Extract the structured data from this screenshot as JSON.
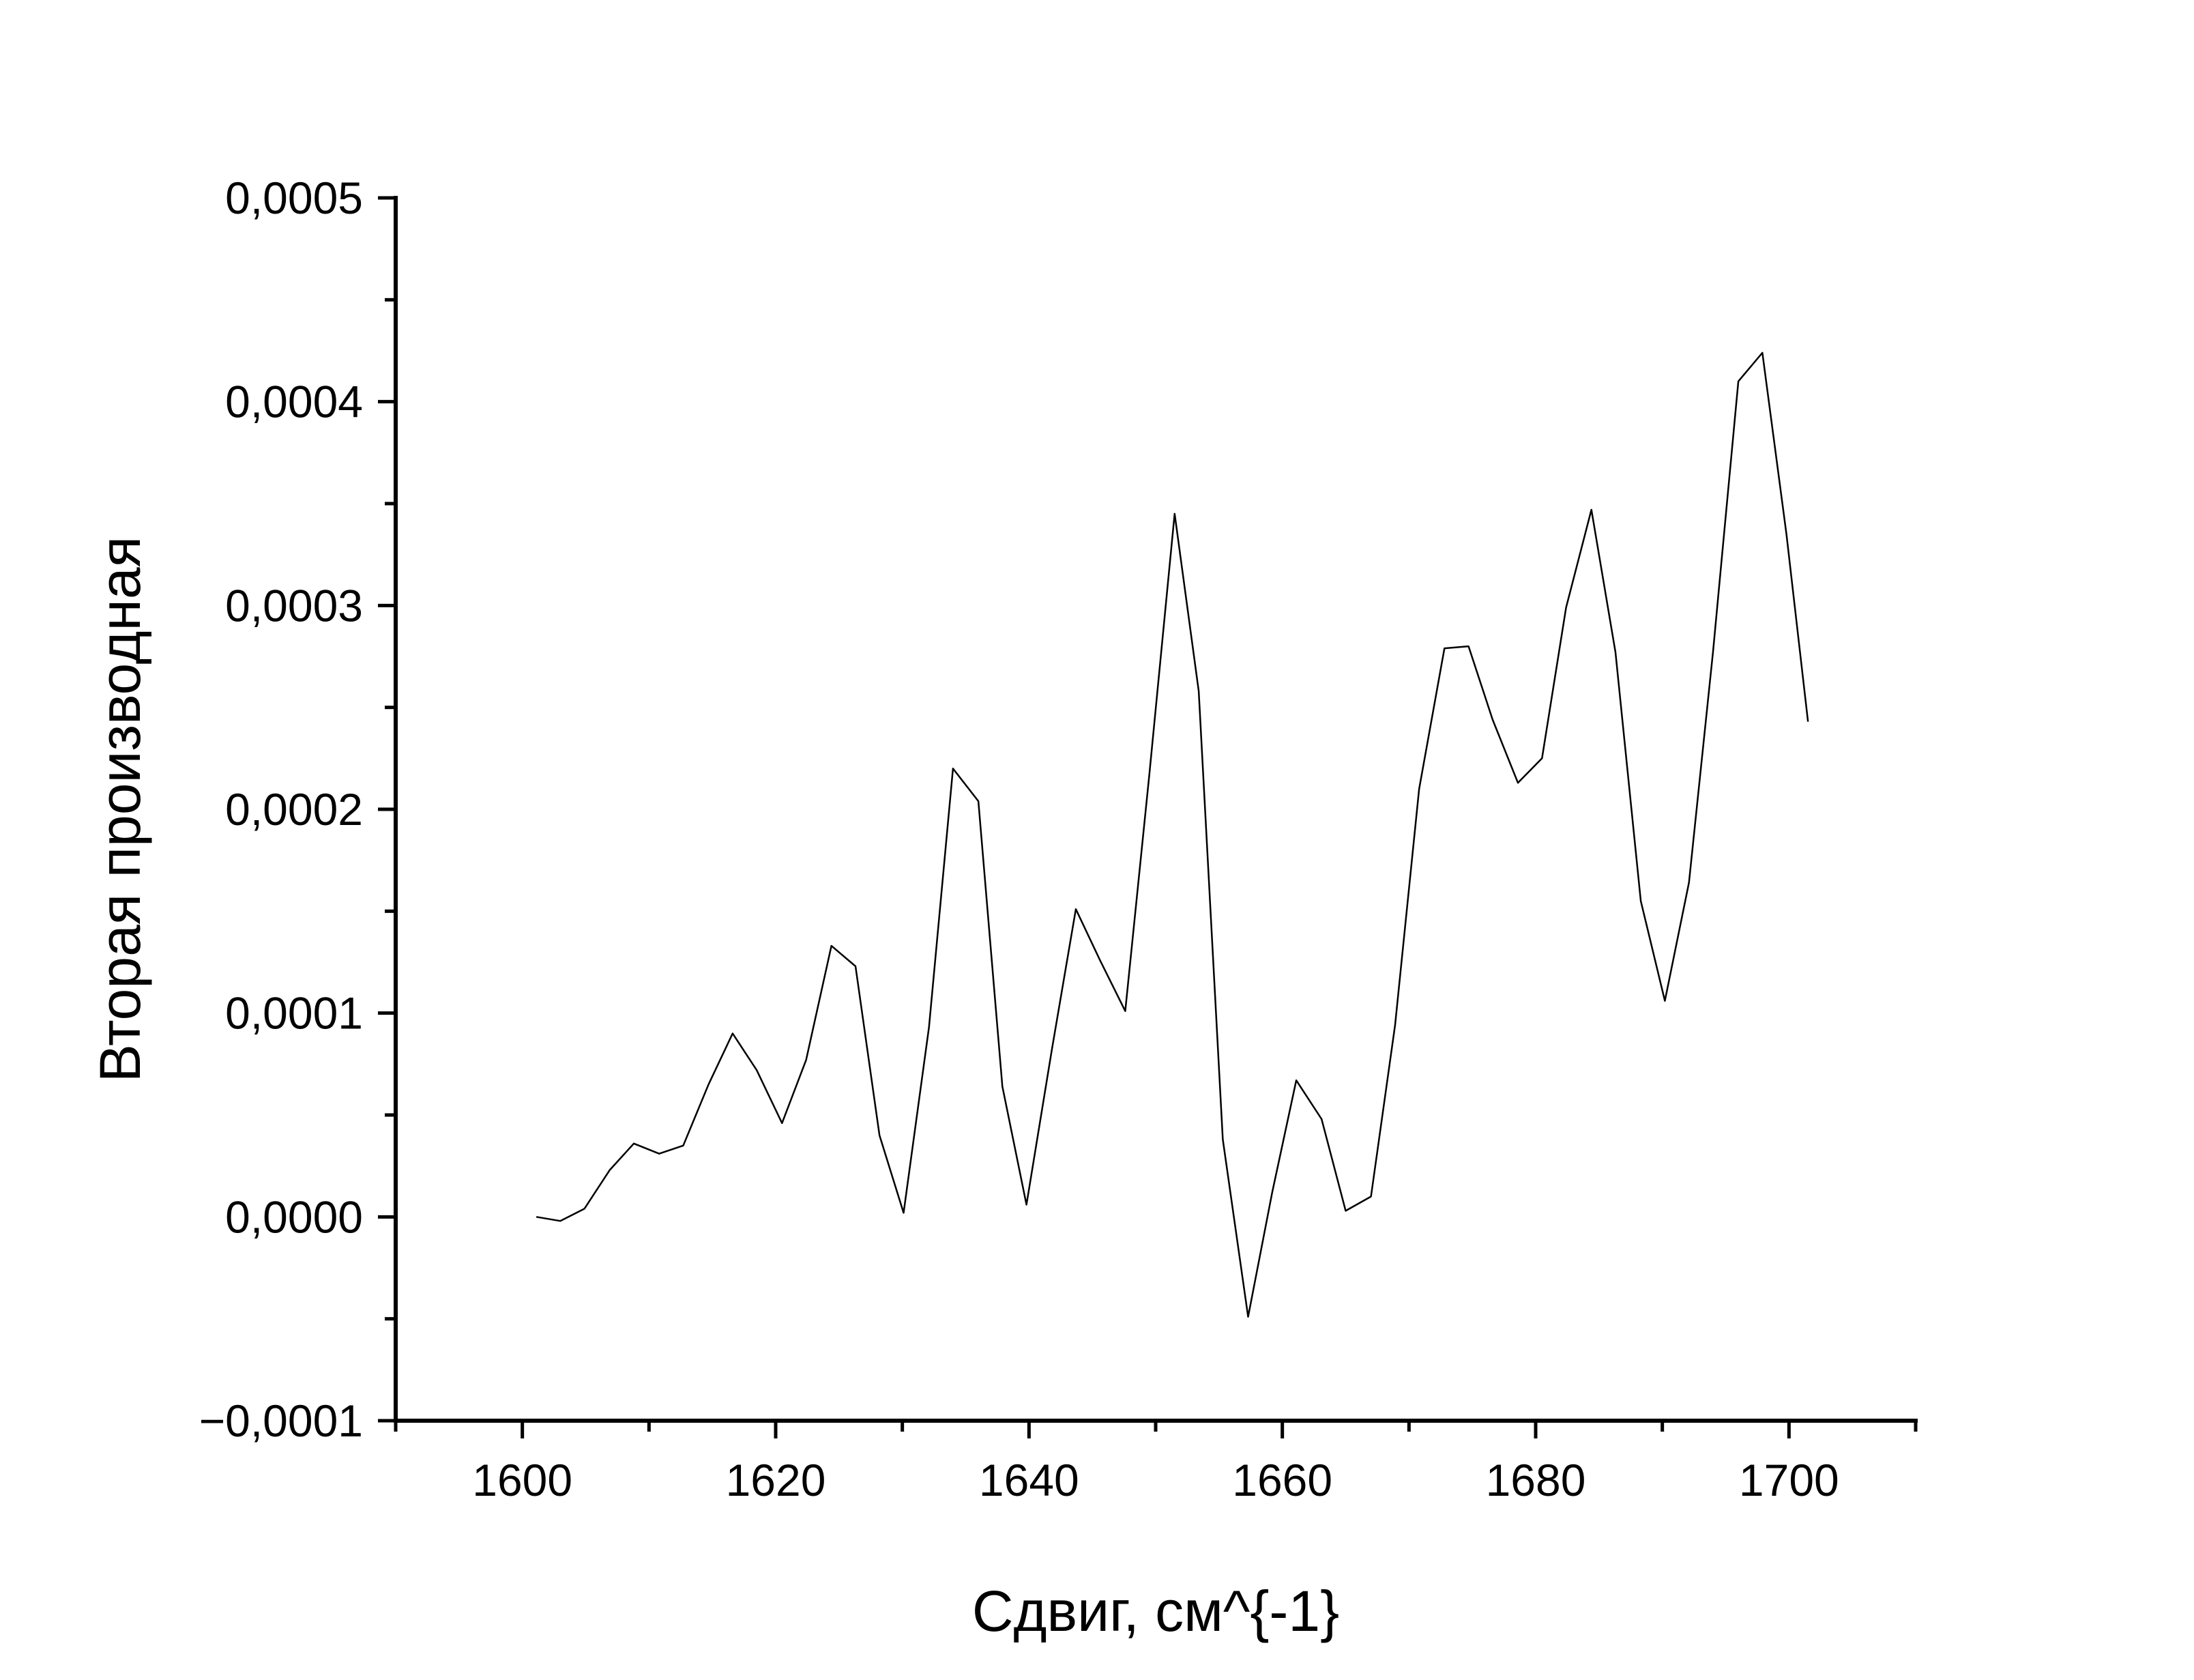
{
  "chart_data": {
    "type": "line",
    "title": "",
    "xlabel": "Сдвиг, см^{-1}",
    "ylabel": "Вторая производная",
    "xlim": [
      1590,
      1710
    ],
    "ylim": [
      -0.0001,
      0.0005
    ],
    "x_ticks": [
      {
        "value": 1600,
        "label": "1600"
      },
      {
        "value": 1620,
        "label": "1620"
      },
      {
        "value": 1640,
        "label": "1640"
      },
      {
        "value": 1660,
        "label": "1660"
      },
      {
        "value": 1680,
        "label": "1680"
      },
      {
        "value": 1700,
        "label": "1700"
      }
    ],
    "y_ticks": [
      {
        "value": -0.0001,
        "label": "−0,0001"
      },
      {
        "value": 0.0,
        "label": "0,0000"
      },
      {
        "value": 0.0001,
        "label": "0,0001"
      },
      {
        "value": 0.0002,
        "label": "0,0002"
      },
      {
        "value": 0.0003,
        "label": "0,0003"
      },
      {
        "value": 0.0004,
        "label": "0,0004"
      },
      {
        "value": 0.0005,
        "label": "0,0005"
      }
    ],
    "grid": false,
    "legend": "none",
    "line_color": "#000000",
    "series": [
      {
        "x": [
          1601.1,
          1603.0,
          1604.9,
          1606.9,
          1608.8,
          1610.8,
          1612.7,
          1614.7,
          1616.6,
          1618.5,
          1620.5,
          1622.4,
          1624.4,
          1626.3,
          1628.2,
          1630.1,
          1632.1,
          1634.0,
          1636.0,
          1637.9,
          1639.8,
          1641.8,
          1643.7,
          1645.6,
          1647.6,
          1649.5,
          1651.5,
          1653.4,
          1655.3,
          1657.3,
          1659.2,
          1661.1,
          1663.1,
          1665.0,
          1667.0,
          1668.9,
          1670.8,
          1672.8,
          1674.7,
          1676.6,
          1678.6,
          1680.5,
          1682.4,
          1684.4,
          1686.3,
          1688.3,
          1690.2,
          1692.1,
          1694.0,
          1696.0,
          1697.9,
          1699.8,
          1701.5
        ],
        "y": [
          0.0,
          -2e-06,
          4e-06,
          2.3e-05,
          3.6e-05,
          3.1e-05,
          3.5e-05,
          6.5e-05,
          9e-05,
          7.2e-05,
          4.6e-05,
          7.7e-05,
          0.000133,
          0.000123,
          4e-05,
          2e-06,
          9.3e-05,
          0.00022,
          0.000204,
          6.4e-05,
          6e-06,
          8.2e-05,
          0.000151,
          0.000126,
          0.000101,
          0.000217,
          0.000345,
          0.000258,
          3.8e-05,
          -4.9e-05,
          1.2e-05,
          6.7e-05,
          4.8e-05,
          3e-06,
          1e-05,
          9.4e-05,
          0.00021,
          0.000279,
          0.00028,
          0.000244,
          0.000213,
          0.000225,
          0.000299,
          0.000347,
          0.000277,
          0.000155,
          0.000106,
          0.000164,
          0.000277,
          0.00041,
          0.000424,
          0.000335,
          0.000243
        ]
      }
    ]
  }
}
